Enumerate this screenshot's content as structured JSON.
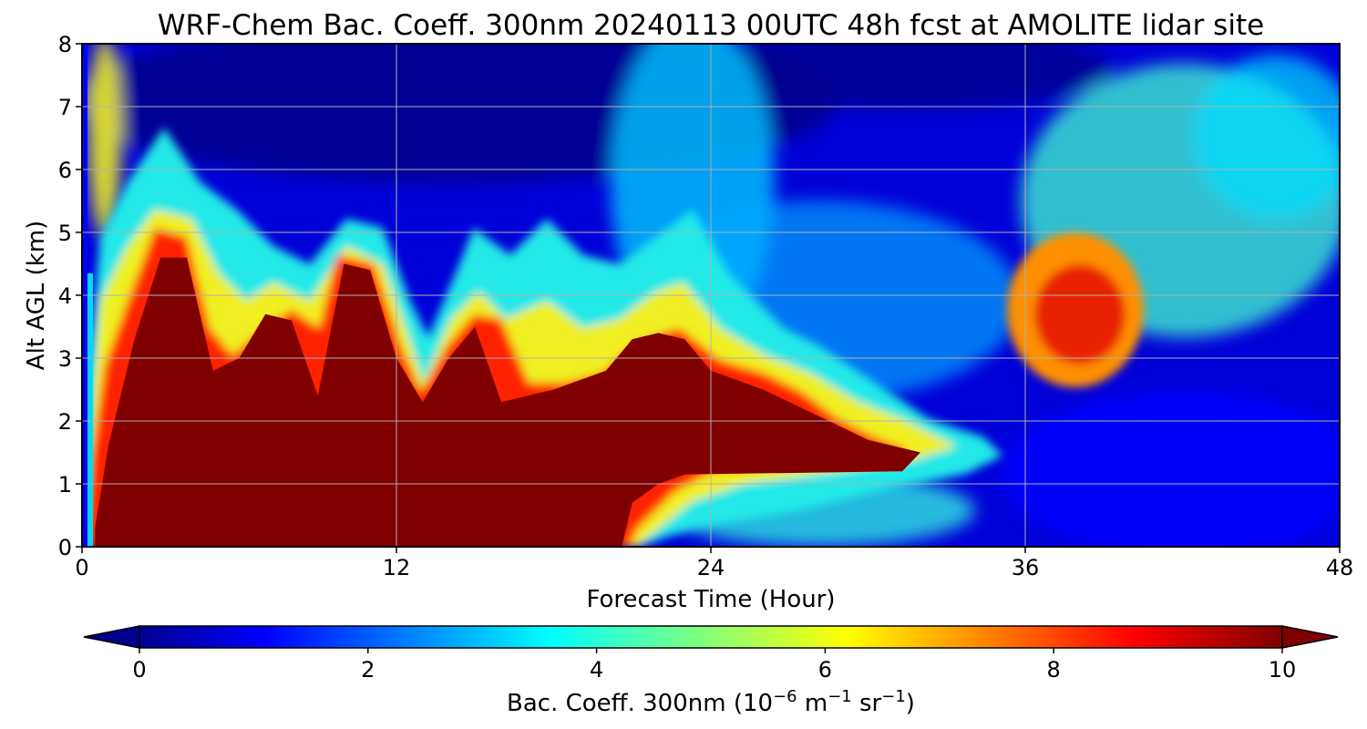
{
  "chart_data": {
    "type": "heatmap",
    "title": "WRF-Chem Bac. Coeff. 300nm  20240113 00UTC 48h fcst at AMOLITE lidar site",
    "xlabel": "Forecast Time (Hour)",
    "ylabel": "Alt AGL (km)",
    "xlim": [
      0,
      48
    ],
    "ylim": [
      0,
      8
    ],
    "x_ticks": [
      "0",
      "12",
      "24",
      "36",
      "48"
    ],
    "y_ticks": [
      "0",
      "1",
      "2",
      "3",
      "4",
      "5",
      "6",
      "7",
      "8"
    ],
    "grid": true,
    "colorbar": {
      "label_main": "Bac. Coeff. 300nm  (10",
      "label_exp1": "−6",
      "label_mid": " m",
      "label_exp2": "−1",
      "label_mid2": " sr",
      "label_exp3": "−1",
      "label_end": ")",
      "range": [
        0,
        10
      ],
      "ticks": [
        "0",
        "2",
        "4",
        "6",
        "8",
        "10"
      ],
      "colormap": "jet",
      "extend": "both",
      "placement": "bottom"
    },
    "levels": {
      "heavy": "dark-red region (>=10), surface to the 'top' profile below",
      "near_surface_gap_hours": [
        0,
        0.5
      ]
    },
    "heavy_aerosol_top_km": {
      "hours": [
        0.5,
        1,
        2,
        3,
        4,
        5,
        6,
        7,
        8,
        9,
        10,
        11,
        12,
        13,
        14,
        15,
        16,
        18,
        20,
        21,
        22,
        23,
        24,
        26,
        28,
        30,
        32
      ],
      "values": [
        0.3,
        1.6,
        3.3,
        4.6,
        4.6,
        2.8,
        3.0,
        3.7,
        3.6,
        2.4,
        4.5,
        4.4,
        3.0,
        2.3,
        3.0,
        3.5,
        2.3,
        2.5,
        2.8,
        3.3,
        3.4,
        3.3,
        2.8,
        2.5,
        2.1,
        1.7,
        1.5
      ]
    },
    "elevated_plume_peak": {
      "hour": 38,
      "alt_km": 3.7,
      "value": 9.5
    }
  }
}
